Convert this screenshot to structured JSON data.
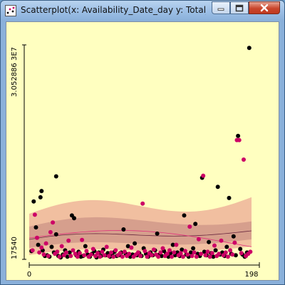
{
  "window": {
    "title": "Scatterplot(x: Availability_Date_day y: Total_Sys...",
    "icons": {
      "app": "scatter-app-icon",
      "minimize": "minimize-icon",
      "maximize": "maximize-icon",
      "close": "close-icon"
    }
  },
  "colors": {
    "background": "#ffffc0",
    "series_dark": "#000000",
    "series_pink": "#cc0066",
    "band_outer": "#eeb49a",
    "band_inner": "#c48a80"
  },
  "chart_data": {
    "type": "scatter",
    "x_tick_labels": [
      "0",
      "198"
    ],
    "y_tick_labels": [
      "17540",
      "3.052886 3E7"
    ],
    "xlim": [
      0,
      198
    ],
    "ylim": [
      17540,
      30528863
    ],
    "series": [
      {
        "color": "#000000",
        "points": [
          [
            2,
            1100000
          ],
          [
            4,
            8200000
          ],
          [
            6,
            4500000
          ],
          [
            8,
            2000000
          ],
          [
            10,
            8800000
          ],
          [
            11,
            9700000
          ],
          [
            12,
            1200000
          ],
          [
            14,
            400000
          ],
          [
            16,
            500000
          ],
          [
            18,
            300000
          ],
          [
            20,
            1700000
          ],
          [
            22,
            900000
          ],
          [
            24,
            3500000
          ],
          [
            24,
            11800000
          ],
          [
            26,
            400000
          ],
          [
            28,
            200000
          ],
          [
            30,
            600000
          ],
          [
            32,
            1200000
          ],
          [
            34,
            300000
          ],
          [
            36,
            900000
          ],
          [
            38,
            6200000
          ],
          [
            40,
            5800000
          ],
          [
            42,
            500000
          ],
          [
            44,
            1000000
          ],
          [
            46,
            300000
          ],
          [
            48,
            400000
          ],
          [
            50,
            1800000
          ],
          [
            52,
            600000
          ],
          [
            54,
            300000
          ],
          [
            56,
            700000
          ],
          [
            58,
            1100000
          ],
          [
            60,
            200000
          ],
          [
            62,
            900000
          ],
          [
            64,
            400000
          ],
          [
            66,
            1300000
          ],
          [
            68,
            500000
          ],
          [
            70,
            800000
          ],
          [
            72,
            300000
          ],
          [
            74,
            600000
          ],
          [
            76,
            1000000
          ],
          [
            78,
            400000
          ],
          [
            80,
            500000
          ],
          [
            82,
            900000
          ],
          [
            84,
            4200000
          ],
          [
            86,
            700000
          ],
          [
            88,
            1800000
          ],
          [
            90,
            300000
          ],
          [
            92,
            600000
          ],
          [
            94,
            2200000
          ],
          [
            96,
            500000
          ],
          [
            98,
            800000
          ],
          [
            100,
            400000
          ],
          [
            102,
            1500000
          ],
          [
            104,
            700000
          ],
          [
            106,
            300000
          ],
          [
            108,
            900000
          ],
          [
            110,
            500000
          ],
          [
            112,
            1200000
          ],
          [
            114,
            3600000
          ],
          [
            116,
            600000
          ],
          [
            118,
            400000
          ],
          [
            120,
            1100000
          ],
          [
            122,
            700000
          ],
          [
            124,
            300000
          ],
          [
            126,
            800000
          ],
          [
            128,
            2000000
          ],
          [
            130,
            500000
          ],
          [
            132,
            900000
          ],
          [
            134,
            400000
          ],
          [
            136,
            1300000
          ],
          [
            138,
            6200000
          ],
          [
            140,
            600000
          ],
          [
            142,
            300000
          ],
          [
            144,
            900000
          ],
          [
            146,
            1500000
          ],
          [
            148,
            5000000
          ],
          [
            150,
            700000
          ],
          [
            152,
            400000
          ],
          [
            154,
            11600000
          ],
          [
            156,
            1000000
          ],
          [
            158,
            500000
          ],
          [
            160,
            2400000
          ],
          [
            162,
            800000
          ],
          [
            164,
            300000
          ],
          [
            166,
            1200000
          ],
          [
            168,
            10300000
          ],
          [
            170,
            600000
          ],
          [
            172,
            900000
          ],
          [
            174,
            400000
          ],
          [
            176,
            1700000
          ],
          [
            178,
            8700000
          ],
          [
            180,
            700000
          ],
          [
            182,
            3200000
          ],
          [
            184,
            500000
          ],
          [
            186,
            17600000
          ],
          [
            188,
            1400000
          ],
          [
            190,
            600000
          ],
          [
            192,
            300000
          ],
          [
            194,
            900000
          ],
          [
            196,
            30200000
          ]
        ]
      },
      {
        "color": "#cc0066",
        "points": [
          [
            3,
            1200000
          ],
          [
            5,
            6300000
          ],
          [
            7,
            3000000
          ],
          [
            9,
            900000
          ],
          [
            11,
            1600000
          ],
          [
            13,
            600000
          ],
          [
            15,
            2200000
          ],
          [
            17,
            400000
          ],
          [
            19,
            3800000
          ],
          [
            21,
            5200000
          ],
          [
            23,
            700000
          ],
          [
            25,
            1000000
          ],
          [
            27,
            300000
          ],
          [
            29,
            1800000
          ],
          [
            31,
            500000
          ],
          [
            33,
            900000
          ],
          [
            35,
            2600000
          ],
          [
            37,
            400000
          ],
          [
            39,
            1200000
          ],
          [
            41,
            700000
          ],
          [
            43,
            300000
          ],
          [
            45,
            800000
          ],
          [
            47,
            2700000
          ],
          [
            49,
            500000
          ],
          [
            51,
            1100000
          ],
          [
            53,
            300000
          ],
          [
            55,
            600000
          ],
          [
            57,
            1400000
          ],
          [
            59,
            400000
          ],
          [
            61,
            800000
          ],
          [
            63,
            300000
          ],
          [
            65,
            1000000
          ],
          [
            67,
            500000
          ],
          [
            69,
            1700000
          ],
          [
            71,
            400000
          ],
          [
            73,
            900000
          ],
          [
            75,
            300000
          ],
          [
            77,
            1200000
          ],
          [
            79,
            500000
          ],
          [
            81,
            800000
          ],
          [
            83,
            300000
          ],
          [
            85,
            1000000
          ],
          [
            87,
            400000
          ],
          [
            89,
            700000
          ],
          [
            91,
            1600000
          ],
          [
            93,
            300000
          ],
          [
            95,
            600000
          ],
          [
            97,
            900000
          ],
          [
            99,
            400000
          ],
          [
            101,
            7900000
          ],
          [
            103,
            1100000
          ],
          [
            105,
            300000
          ],
          [
            107,
            800000
          ],
          [
            109,
            500000
          ],
          [
            111,
            1300000
          ],
          [
            113,
            600000
          ],
          [
            115,
            300000
          ],
          [
            117,
            900000
          ],
          [
            119,
            1500000
          ],
          [
            121,
            400000
          ],
          [
            123,
            700000
          ],
          [
            125,
            1200000
          ],
          [
            127,
            300000
          ],
          [
            129,
            900000
          ],
          [
            131,
            2000000
          ],
          [
            133,
            500000
          ],
          [
            135,
            800000
          ],
          [
            137,
            300000
          ],
          [
            139,
            1100000
          ],
          [
            141,
            600000
          ],
          [
            143,
            4600000
          ],
          [
            145,
            400000
          ],
          [
            147,
            900000
          ],
          [
            149,
            300000
          ],
          [
            151,
            2800000
          ],
          [
            153,
            700000
          ],
          [
            155,
            11900000
          ],
          [
            157,
            500000
          ],
          [
            159,
            1000000
          ],
          [
            161,
            300000
          ],
          [
            163,
            800000
          ],
          [
            165,
            1900000
          ],
          [
            167,
            400000
          ],
          [
            169,
            700000
          ],
          [
            171,
            2600000
          ],
          [
            173,
            500000
          ],
          [
            175,
            900000
          ],
          [
            177,
            300000
          ],
          [
            179,
            1200000
          ],
          [
            181,
            600000
          ],
          [
            183,
            2300000
          ],
          [
            185,
            17000000
          ],
          [
            187,
            17000000
          ],
          [
            189,
            800000
          ],
          [
            191,
            14200000
          ],
          [
            193,
            400000
          ],
          [
            195,
            700000
          ],
          [
            197,
            1000000
          ]
        ]
      }
    ]
  }
}
